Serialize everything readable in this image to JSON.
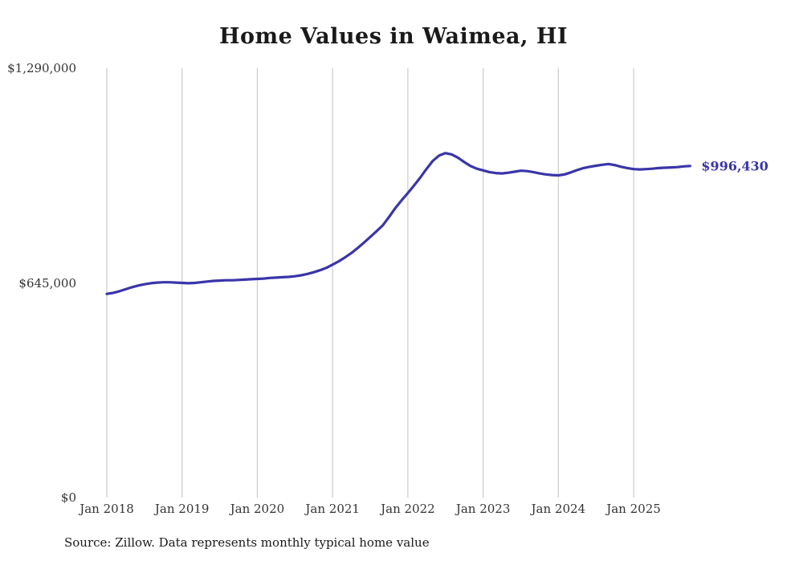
{
  "source_note": "Source: Zillow. Data represents monthly typical home value",
  "latest_value_label": "$996,430",
  "colors": {
    "line": "#3a35a8",
    "grid": "#cbcbcb",
    "title": "#1a1a1a",
    "axis_label": "#333333",
    "end_label": "#3a35a8"
  },
  "chart_data": {
    "type": "line",
    "title": "Home Values in Waimea, HI",
    "xlabel": "",
    "ylabel": "",
    "start_month": "2018-01",
    "frequency": "monthly",
    "ylim": [
      0,
      1290000
    ],
    "grid": "vertical-only",
    "y_ticks": [
      {
        "label": "$1,290,000",
        "value": 1290000
      },
      {
        "label": "$645,000",
        "value": 645000
      },
      {
        "label": "$0",
        "value": 0
      }
    ],
    "x_ticks": [
      {
        "label": "Jan 2018",
        "month_index": 0
      },
      {
        "label": "Jan 2019",
        "month_index": 12
      },
      {
        "label": "Jan 2020",
        "month_index": 24
      },
      {
        "label": "Jan 2021",
        "month_index": 36
      },
      {
        "label": "Jan 2022",
        "month_index": 48
      },
      {
        "label": "Jan 2023",
        "month_index": 60
      },
      {
        "label": "Jan 2024",
        "month_index": 72
      },
      {
        "label": "Jan 2025",
        "month_index": 84
      }
    ],
    "series_name": "Typical home value",
    "values": [
      612000,
      615000,
      620000,
      626000,
      632000,
      637000,
      641000,
      644000,
      646000,
      647000,
      647000,
      646000,
      645000,
      644000,
      645000,
      647000,
      649000,
      651000,
      652000,
      653000,
      653000,
      654000,
      655000,
      656000,
      657000,
      658000,
      660000,
      661000,
      662000,
      663000,
      665000,
      668000,
      672000,
      677000,
      683000,
      690000,
      700000,
      710000,
      722000,
      735000,
      750000,
      766000,
      783000,
      800000,
      818000,
      843000,
      870000,
      893000,
      915000,
      938000,
      962000,
      988000,
      1012000,
      1028000,
      1035000,
      1031000,
      1021000,
      1008000,
      996000,
      988000,
      983000,
      978000,
      975000,
      974000,
      976000,
      979000,
      982000,
      981000,
      978000,
      974000,
      971000,
      969000,
      968000,
      971000,
      977000,
      984000,
      990000,
      994000,
      997000,
      1000000,
      1002000,
      999000,
      994000,
      990000,
      987000,
      986000,
      987000,
      988000,
      990000,
      991000,
      992000,
      993000,
      995000,
      996430
    ],
    "latest_value": 996430
  }
}
